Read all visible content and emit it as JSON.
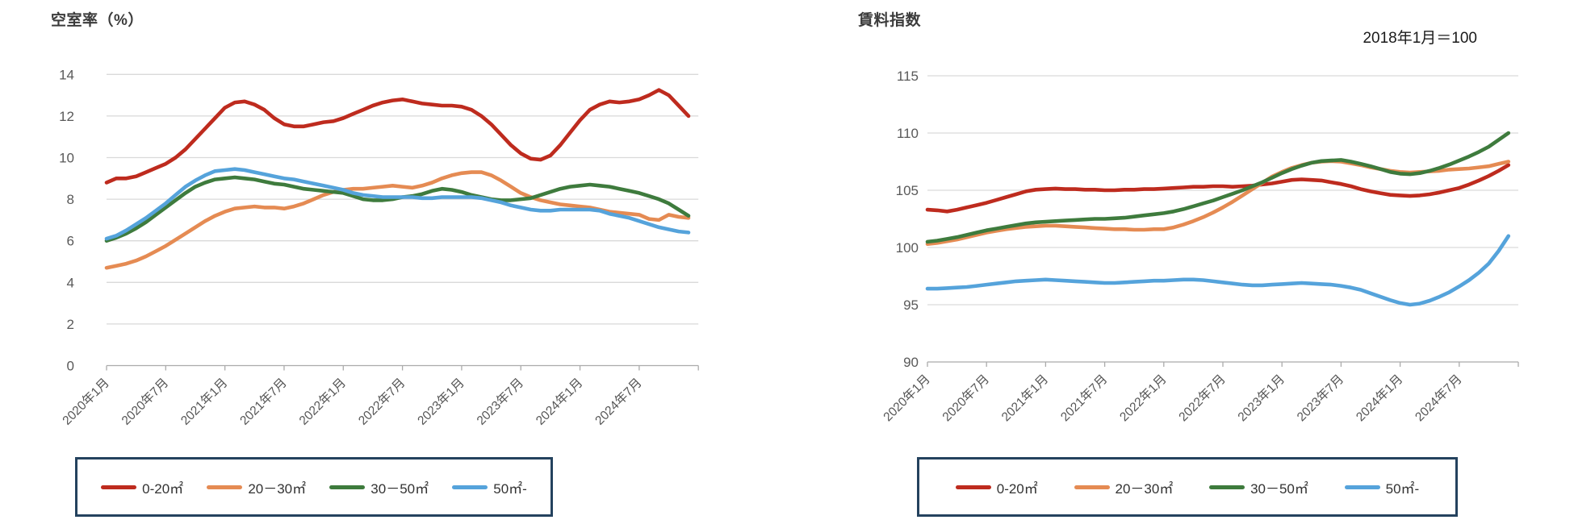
{
  "page": {
    "background": "#ffffff",
    "left_title": "空室率（%）",
    "right_title": "賃料指数",
    "right_annotation": "2018年1月＝100"
  },
  "colors": {
    "grid": "#d9d9d9",
    "axis": "#ababab",
    "axis_text": "#595959",
    "legend_border": "#24425e"
  },
  "chart_data": [
    {
      "type": "line",
      "title": "空室率（%）",
      "xlabel": "",
      "ylabel": "空室率（%）",
      "ylim": [
        0,
        14
      ],
      "ystep": 2,
      "grid": true,
      "legend_position": "bottom",
      "x_monthly_range": "2020年1月〜2024年12月 (月次60点)",
      "x_tick_labels": [
        "2020年1月",
        "2020年7月",
        "2021年1月",
        "2021年7月",
        "2022年1月",
        "2022年7月",
        "2023年1月",
        "2023年7月",
        "2024年1月",
        "2024年7月"
      ],
      "series": [
        {
          "name": "0-20㎡",
          "color": "#be2b1e",
          "values": [
            8.8,
            9.0,
            9.0,
            9.1,
            9.3,
            9.5,
            9.7,
            10.0,
            10.4,
            10.9,
            11.4,
            11.9,
            12.4,
            12.65,
            12.7,
            12.55,
            12.3,
            11.9,
            11.6,
            11.5,
            11.5,
            11.6,
            11.7,
            11.75,
            11.9,
            12.1,
            12.3,
            12.5,
            12.65,
            12.75,
            12.8,
            12.7,
            12.6,
            12.55,
            12.5,
            12.5,
            12.45,
            12.3,
            12.0,
            11.6,
            11.1,
            10.6,
            10.2,
            9.95,
            9.9,
            10.1,
            10.6,
            11.2,
            11.8,
            12.3,
            12.55,
            12.7,
            12.65,
            12.7,
            12.8,
            13.0,
            13.25,
            13.0,
            12.5,
            12.0
          ]
        },
        {
          "name": "20－30㎡",
          "color": "#e58b53",
          "values": [
            4.7,
            4.8,
            4.9,
            5.05,
            5.25,
            5.5,
            5.75,
            6.05,
            6.35,
            6.65,
            6.95,
            7.2,
            7.4,
            7.55,
            7.6,
            7.65,
            7.6,
            7.6,
            7.55,
            7.65,
            7.8,
            8.0,
            8.2,
            8.35,
            8.45,
            8.5,
            8.5,
            8.55,
            8.6,
            8.65,
            8.6,
            8.55,
            8.65,
            8.8,
            9.0,
            9.15,
            9.25,
            9.3,
            9.3,
            9.15,
            8.9,
            8.6,
            8.3,
            8.1,
            7.95,
            7.85,
            7.75,
            7.7,
            7.65,
            7.6,
            7.5,
            7.4,
            7.35,
            7.3,
            7.25,
            7.05,
            7.0,
            7.25,
            7.15,
            7.1
          ]
        },
        {
          "name": "30－50㎡",
          "color": "#3e7b3d",
          "values": [
            6.0,
            6.15,
            6.35,
            6.6,
            6.9,
            7.25,
            7.6,
            7.95,
            8.3,
            8.6,
            8.8,
            8.95,
            9.0,
            9.05,
            9.0,
            8.95,
            8.85,
            8.75,
            8.7,
            8.6,
            8.5,
            8.45,
            8.4,
            8.35,
            8.3,
            8.15,
            8.0,
            7.95,
            7.95,
            8.0,
            8.1,
            8.15,
            8.25,
            8.4,
            8.5,
            8.45,
            8.35,
            8.2,
            8.1,
            8.0,
            7.95,
            7.95,
            8.0,
            8.05,
            8.2,
            8.35,
            8.5,
            8.6,
            8.65,
            8.7,
            8.65,
            8.6,
            8.5,
            8.4,
            8.3,
            8.15,
            8.0,
            7.8,
            7.5,
            7.2
          ]
        },
        {
          "name": "50㎡-",
          "color": "#55a3db",
          "values": [
            6.1,
            6.25,
            6.5,
            6.8,
            7.1,
            7.45,
            7.8,
            8.2,
            8.6,
            8.9,
            9.15,
            9.35,
            9.4,
            9.45,
            9.4,
            9.3,
            9.2,
            9.1,
            9.0,
            8.95,
            8.85,
            8.75,
            8.65,
            8.55,
            8.45,
            8.3,
            8.2,
            8.15,
            8.1,
            8.1,
            8.1,
            8.1,
            8.05,
            8.05,
            8.1,
            8.1,
            8.1,
            8.1,
            8.05,
            7.95,
            7.85,
            7.7,
            7.6,
            7.5,
            7.45,
            7.45,
            7.5,
            7.5,
            7.5,
            7.5,
            7.45,
            7.3,
            7.2,
            7.1,
            6.95,
            6.8,
            6.65,
            6.55,
            6.45,
            6.4
          ]
        }
      ]
    },
    {
      "type": "line",
      "title": "賃料指数",
      "subtitle": "2018年1月＝100",
      "xlabel": "",
      "ylabel": "賃料指数",
      "ylim": [
        90,
        115
      ],
      "ystep": 5,
      "grid": true,
      "legend_position": "bottom",
      "x_monthly_range": "2020年1月〜2024年12月 (月次60点)",
      "x_tick_labels": [
        "2020年1月",
        "2020年7月",
        "2021年1月",
        "2021年7月",
        "2022年1月",
        "2022年7月",
        "2023年1月",
        "2023年7月",
        "2024年1月",
        "2024年7月"
      ],
      "series": [
        {
          "name": "0-20㎡",
          "color": "#be2b1e",
          "values": [
            103.3,
            103.25,
            103.15,
            103.3,
            103.5,
            103.7,
            103.9,
            104.15,
            104.4,
            104.65,
            104.9,
            105.05,
            105.1,
            105.15,
            105.1,
            105.1,
            105.05,
            105.05,
            105.0,
            105.0,
            105.05,
            105.05,
            105.1,
            105.1,
            105.15,
            105.2,
            105.25,
            105.3,
            105.3,
            105.35,
            105.35,
            105.3,
            105.35,
            105.4,
            105.5,
            105.6,
            105.75,
            105.9,
            105.95,
            105.9,
            105.85,
            105.7,
            105.55,
            105.35,
            105.1,
            104.9,
            104.75,
            104.6,
            104.55,
            104.5,
            104.55,
            104.65,
            104.8,
            105.0,
            105.2,
            105.5,
            105.85,
            106.25,
            106.7,
            107.2
          ]
        },
        {
          "name": "20－30㎡",
          "color": "#e58b53",
          "values": [
            100.3,
            100.4,
            100.55,
            100.7,
            100.9,
            101.1,
            101.3,
            101.45,
            101.6,
            101.7,
            101.8,
            101.85,
            101.9,
            101.9,
            101.85,
            101.8,
            101.75,
            101.7,
            101.65,
            101.6,
            101.6,
            101.55,
            101.55,
            101.6,
            101.6,
            101.75,
            102.0,
            102.3,
            102.65,
            103.05,
            103.5,
            104.0,
            104.55,
            105.1,
            105.65,
            106.2,
            106.6,
            106.95,
            107.2,
            107.4,
            107.5,
            107.55,
            107.5,
            107.35,
            107.2,
            107.0,
            106.85,
            106.7,
            106.6,
            106.55,
            106.6,
            106.65,
            106.7,
            106.8,
            106.85,
            106.9,
            107.0,
            107.1,
            107.3,
            107.5
          ]
        },
        {
          "name": "30－50㎡",
          "color": "#3e7b3d",
          "values": [
            100.5,
            100.6,
            100.75,
            100.9,
            101.1,
            101.3,
            101.5,
            101.65,
            101.8,
            101.95,
            102.1,
            102.2,
            102.25,
            102.3,
            102.35,
            102.4,
            102.45,
            102.5,
            102.5,
            102.55,
            102.6,
            102.7,
            102.8,
            102.9,
            103.0,
            103.15,
            103.35,
            103.6,
            103.85,
            104.1,
            104.4,
            104.7,
            105.0,
            105.35,
            105.7,
            106.1,
            106.5,
            106.85,
            107.15,
            107.4,
            107.55,
            107.6,
            107.65,
            107.5,
            107.3,
            107.1,
            106.85,
            106.6,
            106.45,
            106.4,
            106.5,
            106.7,
            106.95,
            107.25,
            107.6,
            107.95,
            108.35,
            108.8,
            109.4,
            110.0
          ]
        },
        {
          "name": "50㎡-",
          "color": "#55a3db",
          "values": [
            96.4,
            96.4,
            96.45,
            96.5,
            96.55,
            96.65,
            96.75,
            96.85,
            96.95,
            97.05,
            97.1,
            97.15,
            97.2,
            97.15,
            97.1,
            97.05,
            97.0,
            96.95,
            96.9,
            96.9,
            96.95,
            97.0,
            97.05,
            97.1,
            97.1,
            97.15,
            97.2,
            97.2,
            97.15,
            97.05,
            96.95,
            96.85,
            96.75,
            96.7,
            96.7,
            96.75,
            96.8,
            96.85,
            96.9,
            96.85,
            96.8,
            96.75,
            96.65,
            96.5,
            96.3,
            96.0,
            95.7,
            95.4,
            95.15,
            95.0,
            95.1,
            95.35,
            95.7,
            96.1,
            96.6,
            97.15,
            97.8,
            98.6,
            99.7,
            101.0
          ]
        }
      ]
    }
  ]
}
